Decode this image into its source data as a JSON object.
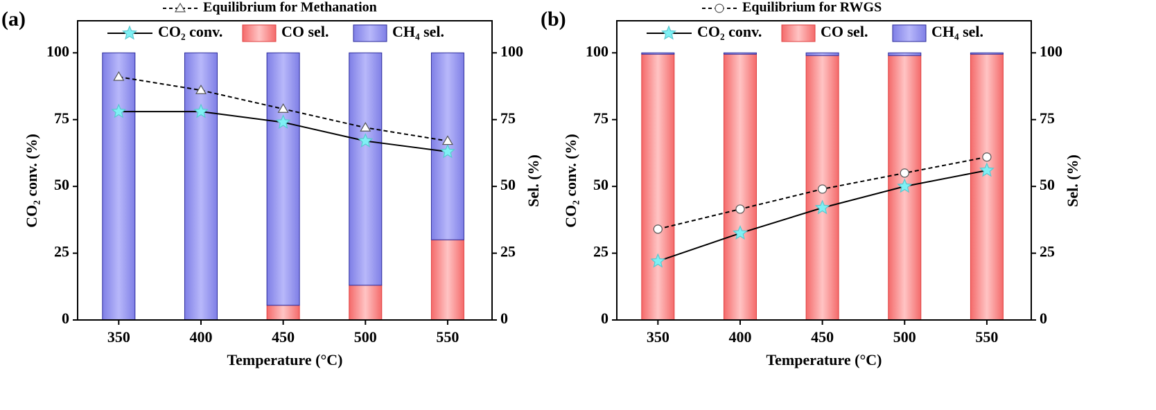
{
  "chart_data": [
    {
      "type": "bar",
      "panel_label": "(a)",
      "xlabel": "Temperature (°C)",
      "ylabel": "CO₂ conv. (%)",
      "y2label": "Sel. (%)",
      "x": [
        350,
        400,
        450,
        500,
        550
      ],
      "xlim": [
        325,
        577
      ],
      "xticks": [
        350,
        400,
        450,
        500,
        550
      ],
      "ylim": [
        0,
        112
      ],
      "yticks": [
        0,
        25,
        50,
        75,
        100
      ],
      "y2lim": [
        0,
        112
      ],
      "y2ticks": [
        0,
        25,
        50,
        75,
        100
      ],
      "series": [
        {
          "name": "CO sel.",
          "type": "bar",
          "axis": "y2",
          "color": "#f46a6a",
          "values": [
            0,
            0,
            5.5,
            13,
            30
          ]
        },
        {
          "name": "CH₄ sel.",
          "type": "bar",
          "axis": "y2",
          "color": "#7f7fe6",
          "values": [
            100,
            100,
            94.5,
            87,
            70
          ]
        },
        {
          "name": "CO₂ conv.",
          "type": "line",
          "axis": "y",
          "color": "#000000",
          "marker": "star",
          "marker_color": "#7ff0f4",
          "values": [
            78,
            78,
            74,
            67,
            63
          ]
        },
        {
          "name": "Equilibrium for Methanation",
          "type": "line",
          "axis": "y",
          "color": "#000000",
          "dash": true,
          "marker": "triangle",
          "marker_color": "#ffffff",
          "values": [
            91,
            86,
            79,
            72,
            67
          ]
        }
      ]
    },
    {
      "type": "bar",
      "panel_label": "(b)",
      "xlabel": "Temperature (°C)",
      "ylabel": "CO₂ conv. (%)",
      "y2label": "Sel. (%)",
      "x": [
        350,
        400,
        450,
        500,
        550
      ],
      "xlim": [
        325,
        577
      ],
      "xticks": [
        350,
        400,
        450,
        500,
        550
      ],
      "ylim": [
        0,
        112
      ],
      "yticks": [
        0,
        25,
        50,
        75,
        100
      ],
      "y2lim": [
        0,
        112
      ],
      "y2ticks": [
        0,
        25,
        50,
        75,
        100
      ],
      "series": [
        {
          "name": "CO sel.",
          "type": "bar",
          "axis": "y2",
          "color": "#f46a6a",
          "values": [
            99.5,
            99.5,
            99,
            99,
            99.5
          ]
        },
        {
          "name": "CH₄ sel.",
          "type": "bar",
          "axis": "y2",
          "color": "#7f7fe6",
          "values": [
            0.5,
            0.5,
            1,
            1,
            0.5
          ]
        },
        {
          "name": "CO₂ conv.",
          "type": "line",
          "axis": "y",
          "color": "#000000",
          "marker": "star",
          "marker_color": "#7ff0f4",
          "values": [
            22,
            32.5,
            42,
            50,
            56
          ]
        },
        {
          "name": "Equilibrium for RWGS",
          "type": "line",
          "axis": "y",
          "color": "#000000",
          "dash": true,
          "marker": "circle",
          "marker_color": "#ffffff",
          "values": [
            34,
            41.5,
            49,
            55,
            61
          ]
        }
      ]
    }
  ]
}
